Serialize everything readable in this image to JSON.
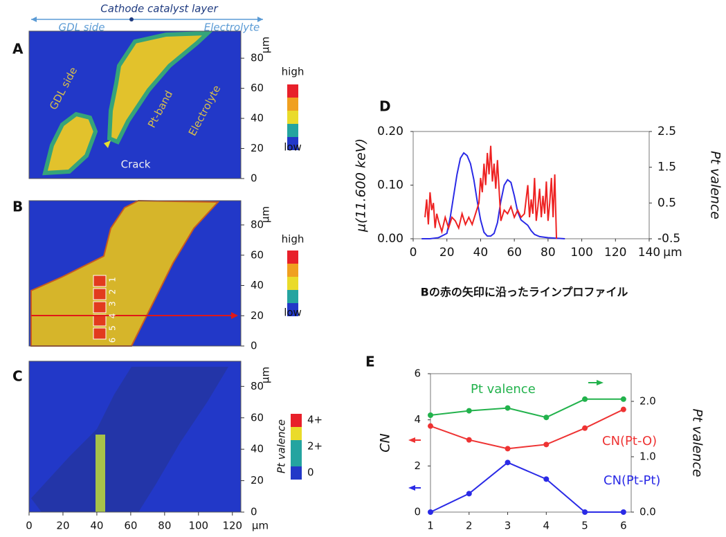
{
  "header": {
    "title": "Cathode catalyst layer",
    "left": "GDL side",
    "right": "Electrolyte"
  },
  "chart_data": [
    {
      "type": "map",
      "label": "A",
      "ylim": [
        0,
        98
      ],
      "yticks": [
        0,
        20,
        40,
        60,
        80
      ],
      "y_unit": "µm",
      "annotations": [
        "GDL side",
        "Pt-band",
        "Electrolyte",
        "Crack"
      ],
      "colorbar": [
        "high",
        "low"
      ]
    },
    {
      "type": "map",
      "label": "B",
      "ylim": [
        0,
        96
      ],
      "yticks": [
        0,
        20,
        40,
        60,
        80
      ],
      "y_unit": "µm",
      "points": [
        "1",
        "2",
        "3",
        "4",
        "5",
        "6"
      ],
      "colorbar": [
        "high",
        "low"
      ]
    },
    {
      "type": "map",
      "label": "C",
      "ylim": [
        0,
        96
      ],
      "yticks": [
        0,
        20,
        40,
        60,
        80
      ],
      "y_unit": "µm",
      "xlim": [
        0,
        125
      ],
      "xticks": [
        0,
        20,
        40,
        60,
        80,
        100,
        120
      ],
      "x_unit": "µm",
      "colorbar": [
        "4+",
        "2+",
        "0"
      ],
      "colorbar_title": "Pt valence"
    },
    {
      "type": "line",
      "label": "D",
      "ylabel": "μ(11.600 keV)",
      "y2label": "Pt valence",
      "x_unit": "µm",
      "caption": "Bの赤の矢印に沿ったラインプロファイル",
      "xlim": [
        0,
        140
      ],
      "xticks": [
        0,
        20,
        40,
        60,
        80,
        100,
        120,
        140
      ],
      "ylim": [
        0,
        0.2
      ],
      "yticks": [
        {
          "value": 0,
          "label": "0.00"
        },
        {
          "value": 0.1,
          "label": "0.10"
        },
        {
          "value": 0.2,
          "label": "0.20"
        }
      ],
      "y2lim": [
        -0.5,
        2.5
      ],
      "y2ticks": [
        -0.5,
        0.5,
        1.5,
        2.5
      ],
      "series": [
        {
          "color": "#2a2ae6",
          "x": [
            5,
            10,
            15,
            20,
            22,
            24,
            26,
            28,
            30,
            32,
            34,
            36,
            38,
            40,
            42,
            44,
            46,
            48,
            50,
            52,
            54,
            56,
            58,
            60,
            62,
            64,
            66,
            68,
            70,
            72,
            75,
            80,
            85,
            90
          ],
          "values": [
            0,
            0,
            0.002,
            0.01,
            0.04,
            0.08,
            0.12,
            0.15,
            0.16,
            0.155,
            0.14,
            0.11,
            0.07,
            0.035,
            0.012,
            0.005,
            0.005,
            0.01,
            0.03,
            0.07,
            0.1,
            0.11,
            0.105,
            0.08,
            0.05,
            0.035,
            0.03,
            0.025,
            0.015,
            0.008,
            0.004,
            0.002,
            0.001,
            0
          ]
        },
        {
          "color": "#ee2222",
          "axis": "y2",
          "x": [
            7,
            8,
            9,
            10,
            11,
            12,
            13,
            14,
            15,
            17,
            19,
            21,
            23,
            25,
            27,
            29,
            31,
            33,
            35,
            37,
            39,
            40,
            41,
            42,
            43,
            44,
            45,
            46,
            47,
            48,
            49,
            50,
            52,
            54,
            56,
            58,
            60,
            62,
            64,
            66,
            68,
            69,
            70,
            71,
            72,
            73,
            74,
            75,
            76,
            77,
            78,
            79,
            80,
            81,
            82,
            83,
            84,
            85
          ],
          "values": [
            0.1,
            0.6,
            -0.1,
            0.8,
            0.3,
            0.5,
            -0.2,
            0.2,
            0.0,
            -0.3,
            0.1,
            -0.2,
            0.1,
            0.0,
            -0.2,
            0.2,
            -0.1,
            0.1,
            -0.1,
            0.2,
            0.5,
            1.2,
            0.8,
            1.6,
            1.0,
            1.9,
            1.3,
            2.1,
            1.1,
            1.6,
            0.9,
            1.7,
            0.0,
            0.3,
            0.2,
            0.4,
            0.1,
            0.3,
            0.1,
            0.2,
            1.0,
            0.1,
            0.6,
            0.2,
            1.2,
            0.0,
            0.4,
            0.9,
            0.1,
            0.7,
            0.2,
            1.1,
            0.0,
            0.5,
            1.2,
            0.1,
            1.3,
            -0.5
          ]
        }
      ]
    },
    {
      "type": "line",
      "label": "E",
      "ylabel": "CN",
      "y2label": "Pt valence",
      "markers": true,
      "x": [
        1,
        2,
        3,
        4,
        5,
        6
      ],
      "xlim": [
        1,
        6.2
      ],
      "xticks": [
        1,
        2,
        3,
        4,
        5,
        6
      ],
      "ylim": [
        0,
        6
      ],
      "yticks": [
        0,
        2,
        4,
        6
      ],
      "y2lim": [
        0,
        2.5
      ],
      "y2ticks": [
        {
          "value": 0,
          "label": "0.0"
        },
        {
          "value": 1,
          "label": "1.0"
        },
        {
          "value": 2,
          "label": "2.0"
        }
      ],
      "series": [
        {
          "name": "Pt valence",
          "color": "#22b24c",
          "axis": "y2",
          "values": [
            1.75,
            1.83,
            1.88,
            1.71,
            2.04,
            2.04
          ]
        },
        {
          "name": "CN(Pt-O)",
          "color": "#ee3333",
          "values": [
            3.73,
            3.13,
            2.75,
            2.93,
            3.64,
            4.45
          ]
        },
        {
          "name": "CN(Pt-Pt)",
          "color": "#2a2ae6",
          "values": [
            0,
            0.8,
            2.15,
            1.43,
            0,
            0
          ]
        }
      ]
    }
  ]
}
